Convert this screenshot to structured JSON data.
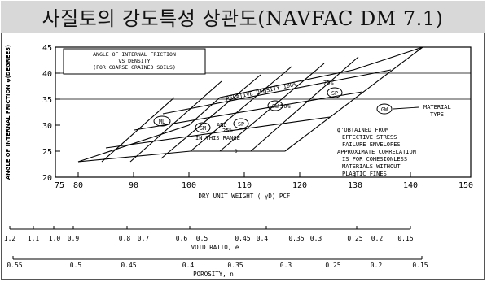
{
  "title": "사질토의 강도특성 상관도(NAVFAC DM 7.1)",
  "chart": {
    "ylabel": "ANGLE OF INTERNAL FRICTION φ(DEGREES)",
    "xlabel": "DRY UNIT WEIGHT ( γD) PCF",
    "x_ticks": [
      "75",
      "80",
      "90",
      "100",
      "110",
      "120",
      "130",
      "140",
      "150"
    ],
    "y_ticks": [
      "20",
      "25",
      "30",
      "35",
      "40",
      "45"
    ],
    "title_box": [
      "ANGLE OF INTERNAL FRICTION",
      "VS DENSITY",
      "(FOR COARSE GRAINED SOILS)"
    ],
    "relative_density_label": "RELATIVE DENSITY 100%",
    "pct_75": "75%",
    "pct_50": "50%",
    "pct_25": "25%",
    "material_type": [
      "MATERIAL",
      "TYPE"
    ],
    "in_this_range": "IN THIS RANGE",
    "and": "AND",
    "small_label": "0",
    "soil_labels": {
      "ml": "ML",
      "sm": "SM",
      "sp_low": "SP",
      "sw": "SW",
      "sp_high": "SP",
      "gw": "GW"
    },
    "note": [
      "φ'OBTAINED FROM",
      "EFFECTIVE STRESS",
      "FAILURE ENVELOPES",
      "APPROXIMATE CORRELATION",
      "IS FOR COHESIONLESS",
      "MATERIALS WITHOUT",
      "PLASTIC FINES"
    ]
  },
  "void_ratio": {
    "ticks": [
      "1.2",
      "1.1",
      "1.0",
      "0.9",
      "0.8",
      "0.7",
      "0.6",
      "0.5",
      "0.45",
      "0.4",
      "0.35",
      "0.3",
      "0.25",
      "0.2",
      "0.15"
    ],
    "label": "VOID RATIO, e"
  },
  "porosity": {
    "ticks": [
      "0.55",
      "0.5",
      "0.45",
      "0.4",
      "0.35",
      "0.3",
      "0.25",
      "0.2",
      "0.15"
    ],
    "label": "POROSITY, n"
  }
}
